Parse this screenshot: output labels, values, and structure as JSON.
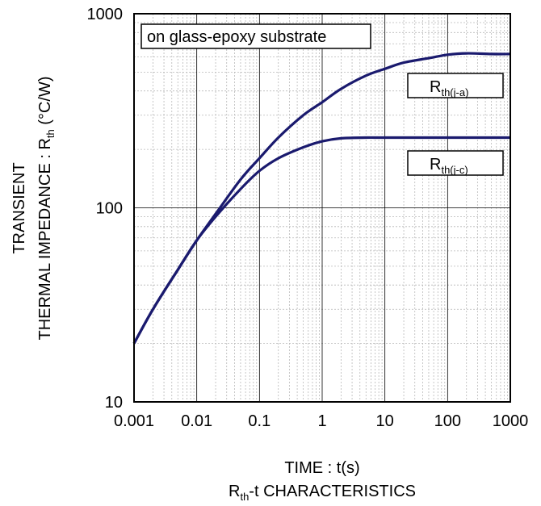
{
  "chart_data": {
    "type": "line",
    "x_scale": "log",
    "y_scale": "log",
    "xlim": [
      0.001,
      1000
    ],
    "ylim": [
      10,
      1000
    ],
    "x_ticks": [
      0.001,
      0.01,
      0.1,
      1,
      10,
      100,
      1000
    ],
    "x_tick_labels": [
      "0.001",
      "0.01",
      "0.1",
      "1",
      "10",
      "100",
      "1000"
    ],
    "y_ticks": [
      10,
      100,
      1000
    ],
    "y_tick_labels": [
      "10",
      "100",
      "1000"
    ],
    "grid": "major and minor",
    "xlabel": "TIME : t(s)",
    "ylabel_line1": "TRANSIENT",
    "ylabel_line2_prefix": "THERMAL IMPEDANCE : R",
    "ylabel_line2_sub": "th",
    "ylabel_line2_suffix": " (°C/W)",
    "caption_prefix": "R",
    "caption_sub": "th",
    "caption_suffix": "-t CHARACTERISTICS",
    "annotation": "on glass-epoxy substrate",
    "line_color": "#1a1a6e",
    "series": [
      {
        "label_main": "R",
        "label_sub": "th(j-a)",
        "x": [
          0.001,
          0.002,
          0.005,
          0.01,
          0.02,
          0.05,
          0.1,
          0.2,
          0.5,
          1,
          2,
          5,
          10,
          20,
          50,
          100,
          200,
          500,
          1000
        ],
        "y": [
          20,
          30,
          48,
          68,
          93,
          140,
          180,
          230,
          300,
          350,
          410,
          480,
          520,
          560,
          590,
          615,
          625,
          620,
          620
        ]
      },
      {
        "label_main": "R",
        "label_sub": "th(j-c)",
        "x": [
          0.001,
          0.002,
          0.005,
          0.01,
          0.02,
          0.05,
          0.1,
          0.2,
          0.5,
          1,
          2,
          5,
          10,
          100,
          1000
        ],
        "y": [
          20,
          30,
          48,
          68,
          90,
          125,
          155,
          180,
          205,
          220,
          228,
          230,
          230,
          230,
          230
        ]
      }
    ]
  }
}
